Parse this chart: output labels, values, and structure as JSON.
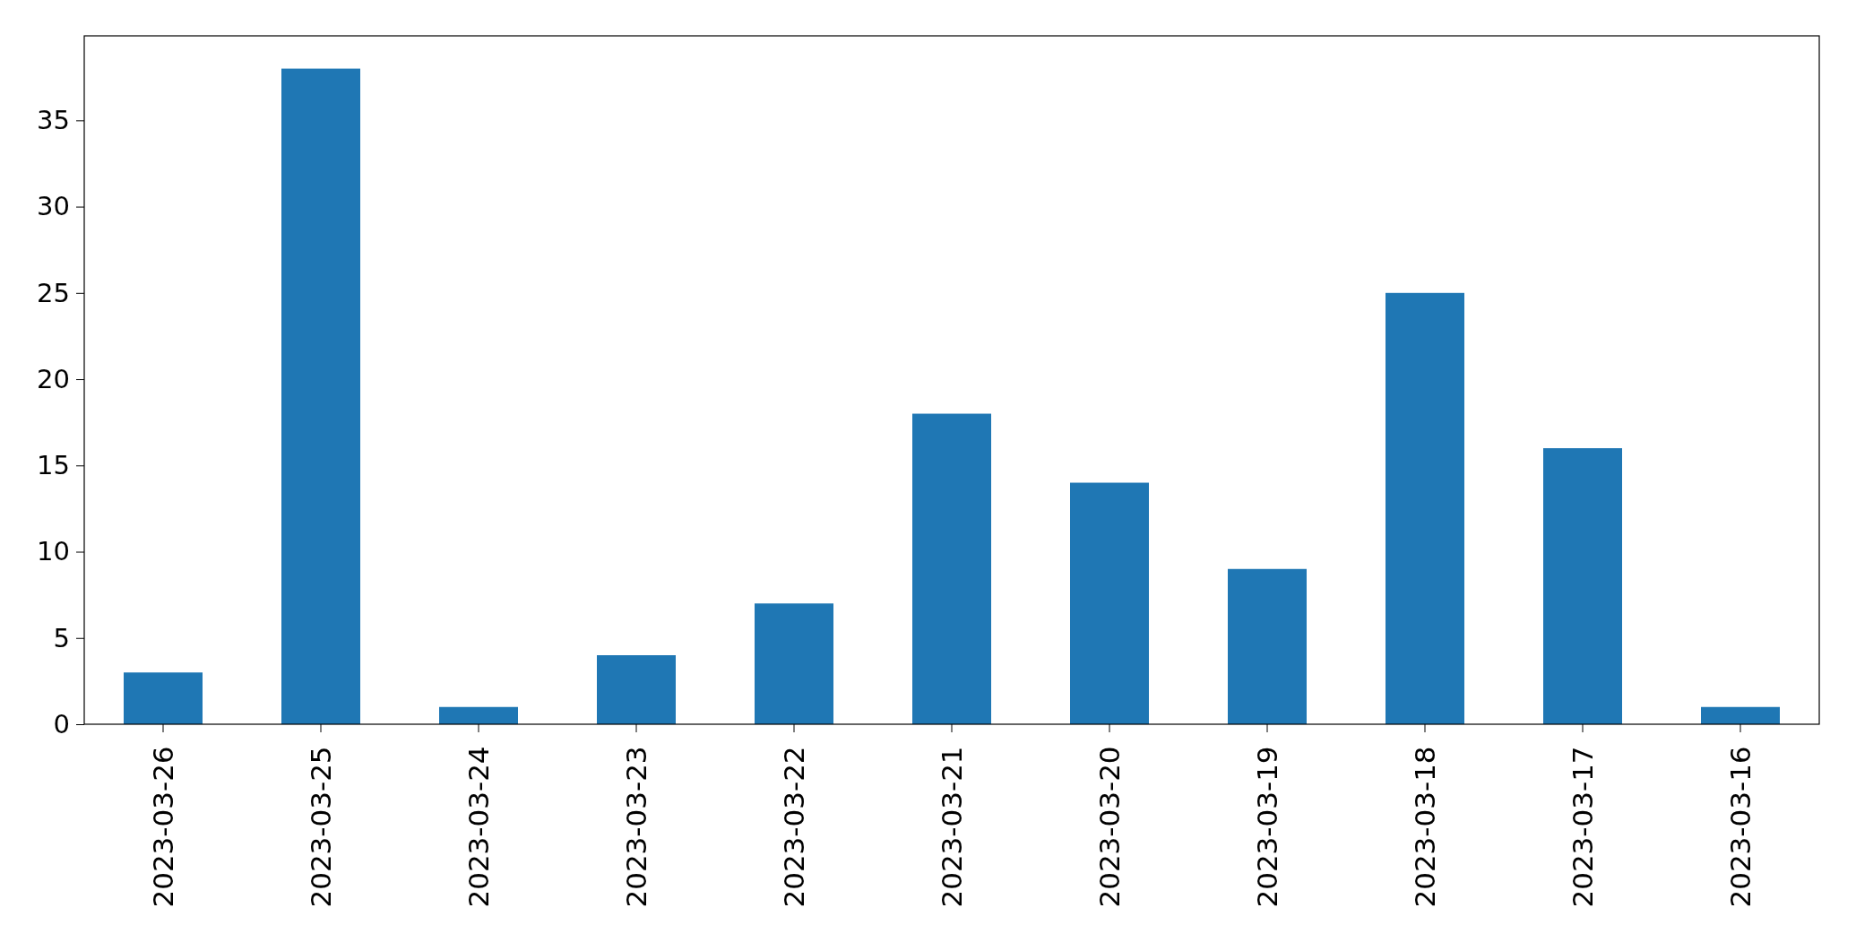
{
  "chart_data": {
    "type": "bar",
    "categories": [
      "2023-03-26",
      "2023-03-25",
      "2023-03-24",
      "2023-03-23",
      "2023-03-22",
      "2023-03-21",
      "2023-03-20",
      "2023-03-19",
      "2023-03-18",
      "2023-03-17",
      "2023-03-16"
    ],
    "values": [
      3,
      38,
      1,
      4,
      7,
      18,
      14,
      9,
      25,
      16,
      1
    ],
    "color": "#1f77b4",
    "ylim": [
      0,
      39.9
    ],
    "yticks": [
      0,
      5,
      10,
      15,
      20,
      25,
      30,
      35
    ],
    "grid": false
  }
}
